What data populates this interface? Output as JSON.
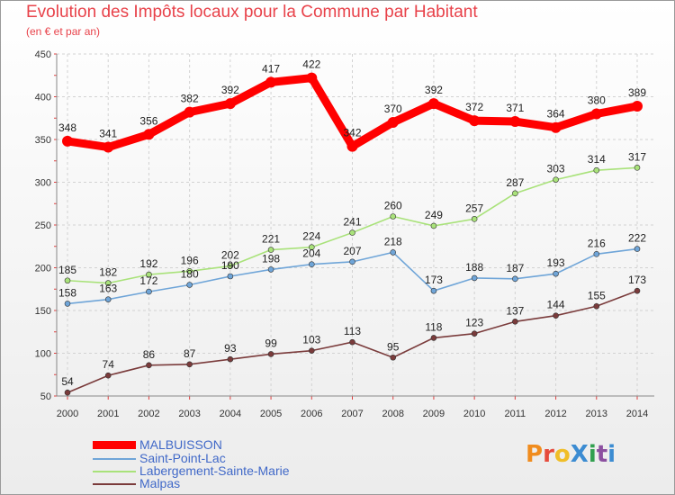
{
  "title": "Evolution des Impôts locaux pour la Commune par Habitant",
  "subtitle": "(en € et par an)",
  "logo": {
    "text": "ProXiti",
    "letters": [
      "P",
      "r",
      "o",
      "X",
      "i",
      "t",
      "i"
    ],
    "colors": [
      "#f08c1e",
      "#e64b3c",
      "#f0be28",
      "#3c8cd2",
      "#32a050",
      "#8c50a0",
      "#3c8cd2"
    ]
  },
  "chart_data": {
    "type": "line",
    "title": "Evolution des Impôts locaux pour la Commune par Habitant",
    "subtitle": "(en € et par an)",
    "xlabel": "",
    "ylabel": "",
    "ylim": [
      50,
      450
    ],
    "yticks": [
      50,
      100,
      150,
      200,
      250,
      300,
      350,
      400,
      450
    ],
    "grid": true,
    "legend_position": "bottom-left",
    "x": [
      "2000",
      "2001",
      "2002",
      "2003",
      "2004",
      "2005",
      "2006",
      "2007",
      "2008",
      "2009",
      "2010",
      "2011",
      "2012",
      "2013",
      "2014"
    ],
    "series": [
      {
        "name": "MALBUISSON",
        "color": "#ff0000",
        "emphasis": true,
        "values": [
          348,
          341,
          356,
          382,
          392,
          417,
          422,
          342,
          370,
          392,
          372,
          371,
          364,
          380,
          389
        ]
      },
      {
        "name": "Saint-Point-Lac",
        "color": "#6fa5d8",
        "emphasis": false,
        "values": [
          158,
          163,
          172,
          180,
          190,
          198,
          204,
          207,
          218,
          173,
          188,
          187,
          193,
          216,
          222
        ]
      },
      {
        "name": "Labergement-Sainte-Marie",
        "color": "#a9e27a",
        "emphasis": false,
        "values": [
          185,
          182,
          192,
          196,
          202,
          221,
          224,
          241,
          260,
          249,
          257,
          287,
          303,
          314,
          317
        ]
      },
      {
        "name": "Malpas",
        "color": "#7a3b3b",
        "emphasis": false,
        "values": [
          54,
          74,
          86,
          87,
          93,
          99,
          103,
          113,
          95,
          118,
          123,
          137,
          144,
          155,
          173
        ]
      }
    ]
  }
}
